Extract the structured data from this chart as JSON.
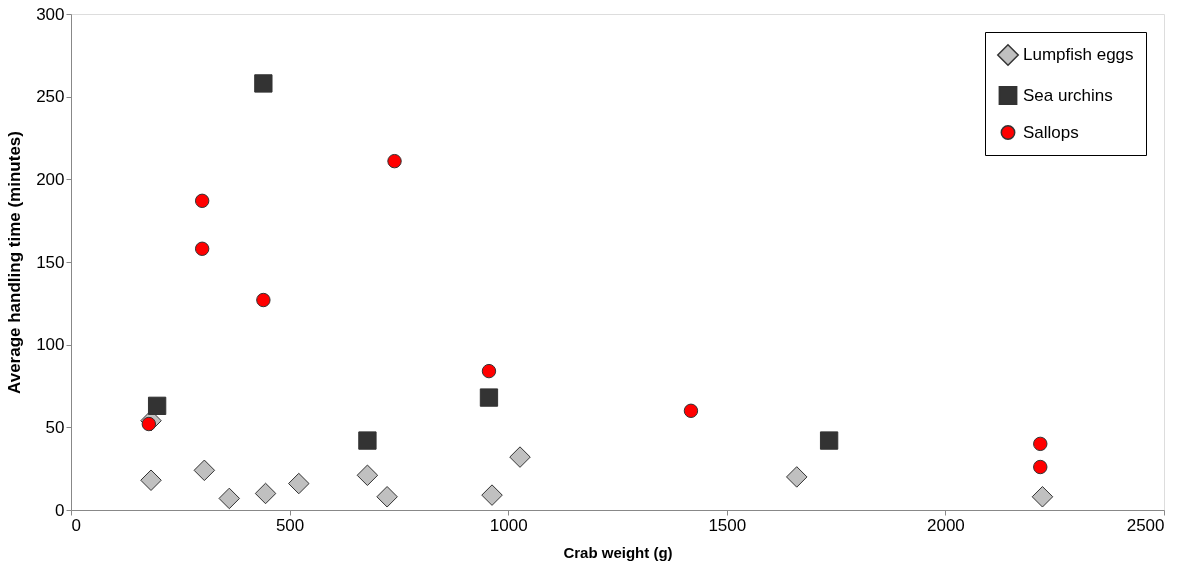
{
  "chart_data": {
    "type": "scatter",
    "xlabel": "Crab weight (g)",
    "ylabel": "Average handling time (minutes)",
    "xlim": [
      0,
      2500
    ],
    "xticks": [
      0,
      500,
      1000,
      1500,
      2000,
      2500
    ],
    "ylim": [
      0,
      300
    ],
    "yticks": [
      0,
      50,
      100,
      150,
      200,
      250,
      300
    ],
    "grid": false,
    "legend": "top right",
    "series": [
      {
        "name": "Lumpfish eggs",
        "color": "#c0c0c0",
        "marker": "diamond",
        "x": [
          183,
          183,
          305,
          362,
          445,
          521,
          678,
          723,
          963,
          1027,
          1660,
          2222
        ],
        "values": [
          54,
          18,
          24,
          7,
          10,
          16,
          21,
          8,
          9,
          32,
          20,
          8
        ]
      },
      {
        "name": "Sea urchins",
        "color": "#333333",
        "marker": "square",
        "x": [
          197,
          440,
          678,
          956,
          1734
        ],
        "values": [
          63,
          258,
          42,
          68,
          42
        ]
      },
      {
        "name": "Sallops",
        "color": "#ff0000",
        "marker": "circle",
        "x": [
          178,
          300,
          300,
          440,
          740,
          956,
          1418,
          2217,
          2217
        ],
        "values": [
          52,
          187,
          158,
          127,
          211,
          84,
          60,
          40,
          26
        ]
      }
    ]
  }
}
